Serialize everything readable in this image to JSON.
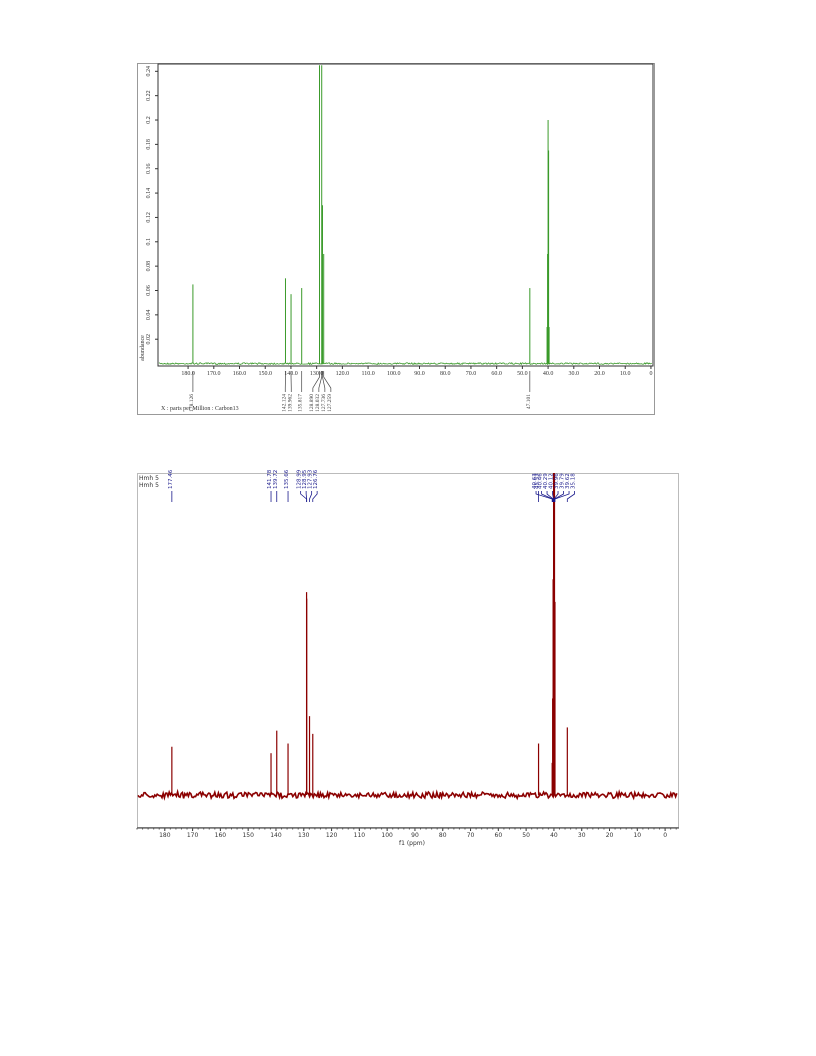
{
  "chart_data": [
    {
      "type": "spectrum",
      "x_label": "X : parts per Million : Carbon13",
      "y_label": "abundance",
      "color": "#3a9a2a",
      "label_color": "#333333",
      "xlim": [
        191.7,
        -0.8
      ],
      "ylim": [
        -0.002,
        0.246
      ],
      "xticks": [
        {
          "value": 180,
          "label": "180.0"
        },
        {
          "value": 170,
          "label": "170.0"
        },
        {
          "value": 160,
          "label": "160.0"
        },
        {
          "value": 150,
          "label": "150.0"
        },
        {
          "value": 140,
          "label": "140.0"
        },
        {
          "value": 130,
          "label": "130.0"
        },
        {
          "value": 120,
          "label": "120.0"
        },
        {
          "value": 110,
          "label": "110.0"
        },
        {
          "value": 100,
          "label": "100.0"
        },
        {
          "value": 90,
          "label": "90.0"
        },
        {
          "value": 80,
          "label": "80.0"
        },
        {
          "value": 70,
          "label": "70.0"
        },
        {
          "value": 60,
          "label": "60.0"
        },
        {
          "value": 50,
          "label": "50.0"
        },
        {
          "value": 40,
          "label": "40.0"
        },
        {
          "value": 30,
          "label": "30.0"
        },
        {
          "value": 20,
          "label": "20.0"
        },
        {
          "value": 10,
          "label": "10.0"
        },
        0
      ],
      "yticks": [
        0.02,
        0.04,
        0.06,
        0.08,
        0.1,
        0.12,
        0.14,
        0.16,
        0.18,
        0.2,
        0.22,
        0.24
      ],
      "peaks": {
        "x": [
          178.126,
          142.124,
          139.962,
          135.817,
          128.89,
          128.032,
          127.736,
          127.259,
          47.101,
          40.4,
          40.2,
          40.0,
          39.8,
          39.6
        ],
        "x_labels": [
          "178.126",
          "142.124",
          "139.962",
          "135.817",
          "128.890",
          "128.032",
          "127.736",
          "127.259",
          "47.101",
          null,
          null,
          null,
          null,
          null
        ],
        "values": [
          0.065,
          0.07,
          0.057,
          0.062,
          0.245,
          0.245,
          0.13,
          0.09,
          0.062,
          0.03,
          0.09,
          0.2,
          0.175,
          0.03
        ]
      }
    },
    {
      "type": "spectrum",
      "x_label": "f1 (ppm)",
      "annotations": [
        "Hmh 5",
        "Hmh 5"
      ],
      "color": "#8b0000",
      "label_color": "#1a1a8c",
      "xlim": [
        190,
        -5
      ],
      "ylim": [
        -9.3,
        100
      ],
      "xticks": [
        180,
        170,
        160,
        150,
        140,
        130,
        120,
        110,
        100,
        90,
        80,
        70,
        60,
        50,
        40,
        30,
        20,
        10,
        0
      ],
      "peaks": {
        "x": [
          177.46,
          141.78,
          139.72,
          135.66,
          128.99,
          128.95,
          127.93,
          126.76,
          45.53,
          40.63,
          40.46,
          40.29,
          40.12,
          39.96,
          39.79,
          39.62,
          35.18
        ],
        "x_labels": [
          "177.46",
          "141.78",
          "139.72",
          "135.66",
          "128.99",
          "128.95",
          "127.93",
          "126.76",
          "45.53",
          "40.63",
          "40.46",
          "40.29",
          "40.12",
          "39.96",
          "39.79",
          "39.62",
          "35.18"
        ],
        "values": [
          15,
          13,
          20,
          16,
          63,
          61,
          24.5,
          19,
          16,
          10,
          30,
          67,
          100,
          100,
          100,
          60,
          21
        ]
      }
    }
  ]
}
